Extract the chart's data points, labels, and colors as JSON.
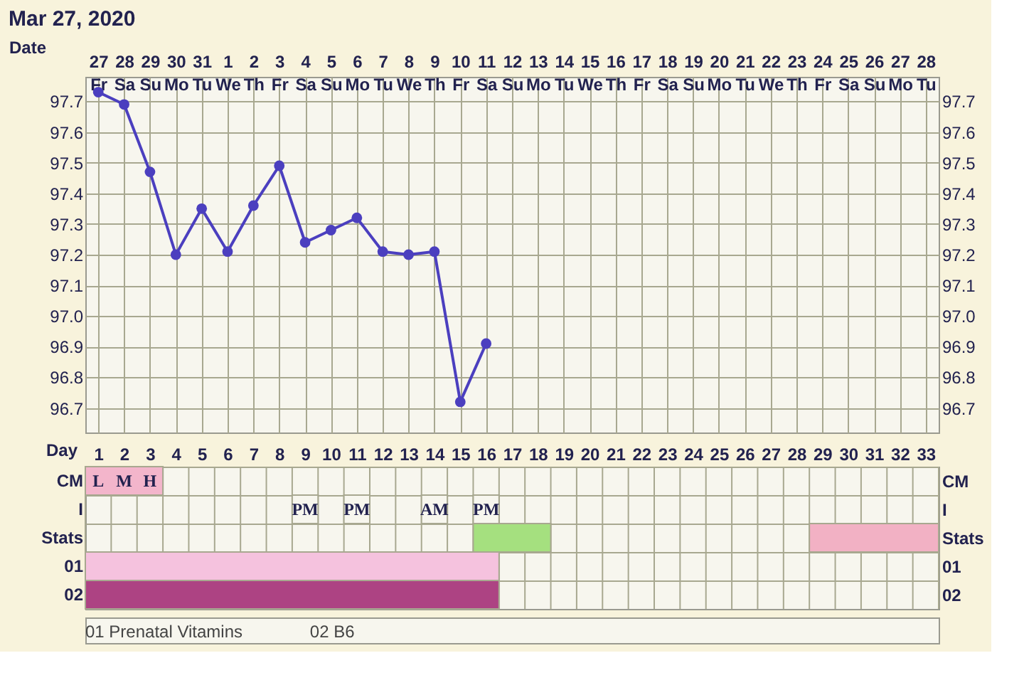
{
  "chart_data": [
    {
      "type": "line",
      "title": "Mar 27, 2020",
      "xlabel": "Date",
      "marker": "circle",
      "line_style": "solid",
      "grid": true,
      "categories": [
        "27 Fr",
        "28 Sa",
        "29 Su",
        "30 Mo",
        "31 Tu",
        "1 We",
        "2 Th",
        "3 Fr",
        "4 Sa",
        "5 Su",
        "6 Mo",
        "7 Tu",
        "8 We",
        "9 Th",
        "10 Fr",
        "11 Sa",
        "12 Su",
        "13 Mo",
        "14 Tu",
        "15 We",
        "16 Th",
        "17 Fr",
        "18 Sa",
        "19 Su",
        "20 Mo",
        "21 Tu",
        "22 We",
        "23 Th",
        "24 Fr",
        "25 Sa",
        "26 Su",
        "27 Mo",
        "28 Tu"
      ],
      "series": [
        {
          "color": "#4b3fbf",
          "values": [
            97.73,
            97.69,
            97.47,
            97.2,
            97.35,
            97.21,
            97.36,
            97.49,
            97.24,
            97.28,
            97.32,
            97.21,
            97.2,
            97.21,
            96.72,
            96.91,
            null,
            null,
            null,
            null,
            null,
            null,
            null,
            null,
            null,
            null,
            null,
            null,
            null,
            null,
            null,
            null,
            null
          ]
        }
      ],
      "ylim": [
        96.62,
        97.78
      ],
      "yticks": [
        96.7,
        96.8,
        96.9,
        {
          "value": 97.0,
          "label": "97.0"
        },
        97.1,
        97.2,
        97.3,
        97.4,
        97.5,
        97.6,
        97.7
      ],
      "y2lim": [
        96.62,
        97.78
      ],
      "y2ticks": [
        96.7,
        96.8,
        96.9,
        {
          "value": 97.0,
          "label": "97.0"
        },
        97.1,
        97.2,
        97.3,
        97.4,
        97.5,
        97.6,
        97.7
      ]
    },
    {
      "type": "bar",
      "orientation": "horizontal",
      "xlabel": "Day",
      "grid": true,
      "categories": [
        "CM",
        "I",
        "Stats",
        "01",
        "02"
      ],
      "xlim": [
        0.5,
        33.5
      ],
      "xticks": [
        1,
        2,
        3,
        4,
        5,
        6,
        7,
        8,
        9,
        10,
        11,
        12,
        13,
        14,
        15,
        16,
        17,
        18,
        19,
        20,
        21,
        22,
        23,
        24,
        25,
        26,
        27,
        28,
        29,
        30,
        31,
        32,
        33
      ],
      "series": [
        {
          "color": "#f3b5cb",
          "values": [
            3,
            null,
            null,
            null,
            null
          ],
          "base": [
            0.5,
            null,
            null,
            null,
            null
          ]
        },
        {
          "color": "#a5e07f",
          "values": [
            null,
            null,
            3,
            null,
            null
          ],
          "base": [
            null,
            null,
            15.5,
            null,
            null
          ]
        },
        {
          "color": "#f2b1c4",
          "values": [
            null,
            null,
            5,
            null,
            null
          ],
          "base": [
            null,
            null,
            28.5,
            null,
            null
          ]
        },
        {
          "color": "#f5c2de",
          "values": [
            null,
            null,
            null,
            16,
            null
          ],
          "base": [
            null,
            null,
            null,
            0.5,
            null
          ]
        },
        {
          "color": "#ad4383",
          "values": [
            null,
            null,
            null,
            null,
            16
          ],
          "base": [
            null,
            null,
            null,
            null,
            0.5
          ]
        },
        {
          "color": "#f7f6ee",
          "values": [
            null,
            1,
            null,
            null,
            null
          ],
          "base": [
            null,
            8.5,
            null,
            null,
            null
          ],
          "value_labels": [
            null,
            "PM",
            null,
            null,
            null
          ]
        },
        {
          "color": "#f7f6ee",
          "values": [
            null,
            1,
            null,
            null,
            null
          ],
          "base": [
            null,
            10.5,
            null,
            null,
            null
          ],
          "value_labels": [
            null,
            "PM",
            null,
            null,
            null
          ]
        },
        {
          "color": "#f7f6ee",
          "values": [
            null,
            1,
            null,
            null,
            null
          ],
          "base": [
            null,
            13.5,
            null,
            null,
            null
          ],
          "value_labels": [
            null,
            "AM",
            null,
            null,
            null
          ]
        },
        {
          "color": "#f7f6ee",
          "values": [
            null,
            1,
            null,
            null,
            null
          ],
          "base": [
            null,
            15.5,
            null,
            null,
            null
          ],
          "value_labels": [
            null,
            "PM",
            null,
            null,
            null
          ]
        }
      ],
      "annotations": [
        {
          "text": "L",
          "x": 1,
          "y": "CM"
        },
        {
          "text": "M",
          "x": 2,
          "y": "CM"
        },
        {
          "text": "H",
          "x": 3,
          "y": "CM"
        },
        "01 Prenatal Vitamins",
        "02 B6"
      ]
    }
  ]
}
